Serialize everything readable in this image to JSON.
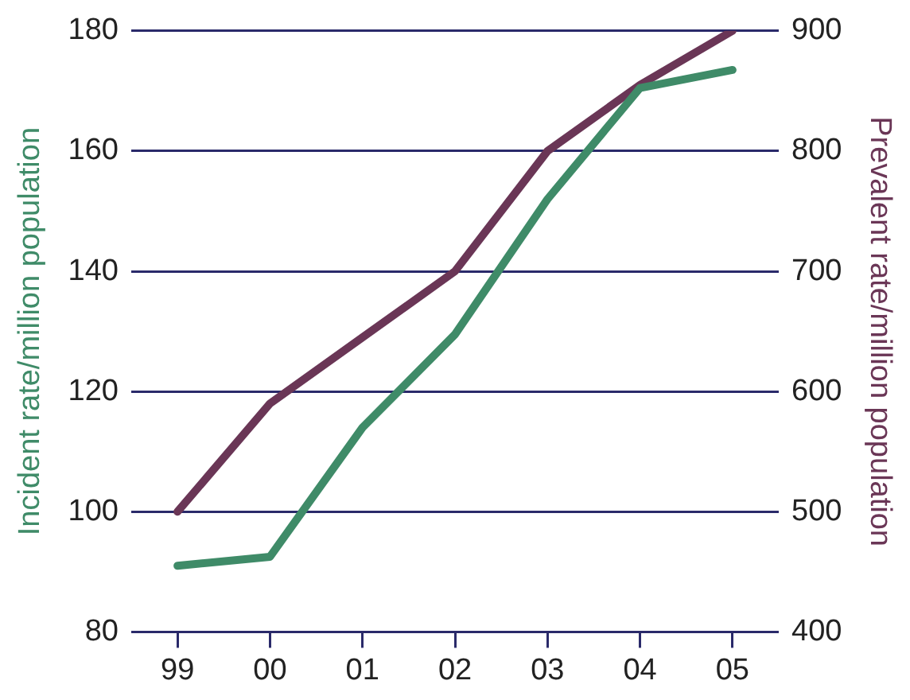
{
  "chart_data": {
    "type": "line",
    "ylabel": "Incident rate/million population",
    "y2label": "Prevalent rate/million population",
    "categories": [
      "99",
      "00",
      "01",
      "02",
      "03",
      "04",
      "05"
    ],
    "series": [
      {
        "color": "#3f8b68",
        "values": [
          91,
          92.5,
          114,
          129.5,
          152,
          170.5,
          173.5
        ]
      },
      {
        "color": "#6a3656",
        "values": [
          500,
          590,
          645,
          700,
          800,
          855,
          900
        ],
        "axis": "y2"
      }
    ],
    "ylim": [
      80,
      180
    ],
    "yticks": [
      80,
      100,
      120,
      140,
      160,
      180
    ],
    "y2lim": [
      400,
      900
    ],
    "y2ticks": [
      400,
      500,
      600,
      700,
      800,
      900
    ],
    "grid": "y",
    "marker": "none",
    "line_style": "solid"
  }
}
